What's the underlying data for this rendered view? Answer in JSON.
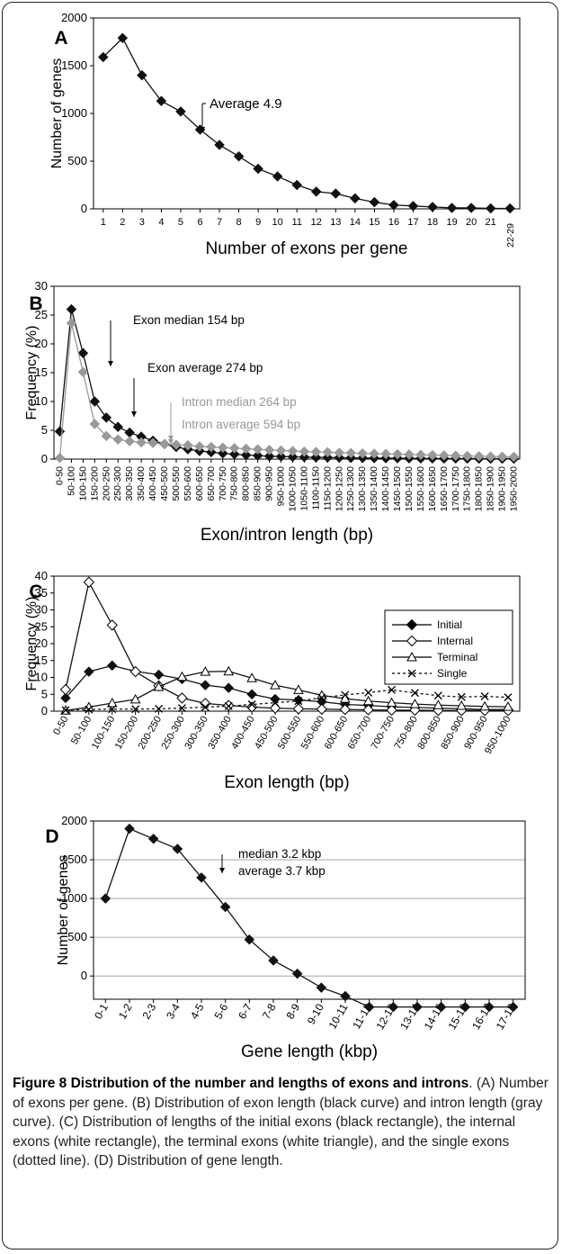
{
  "chart_data": [
    {
      "panel": "A",
      "type": "line",
      "xlabel": "Number of exons per gene",
      "ylabel": "Number of genes",
      "ylim": [
        0,
        2000
      ],
      "yticks": [
        "0",
        "500",
        "1000",
        "1500",
        "2000"
      ],
      "categories": [
        "1",
        "2",
        "3",
        "4",
        "5",
        "6",
        "7",
        "8",
        "9",
        "10",
        "11",
        "12",
        "13",
        "14",
        "15",
        "16",
        "17",
        "18",
        "19",
        "20",
        "21",
        "22-29"
      ],
      "series": [
        {
          "values": [
            1590,
            1790,
            1400,
            1130,
            1020,
            830,
            670,
            550,
            420,
            340,
            250,
            180,
            160,
            110,
            70,
            40,
            30,
            20,
            10,
            10,
            5,
            5
          ]
        }
      ],
      "annotations": [
        "Average 4.9"
      ],
      "grid": false,
      "series_color": "#111111"
    },
    {
      "panel": "B",
      "type": "line",
      "xlabel": "Exon/intron length (bp)",
      "ylabel": "Frequency (%)",
      "ylim": [
        0,
        30
      ],
      "yticks": [
        "0",
        "5",
        "10",
        "15",
        "20",
        "25",
        "30"
      ],
      "categories": [
        "0-50",
        "50-100",
        "100-150",
        "150-200",
        "200-250",
        "250-300",
        "300-350",
        "350-400",
        "400-450",
        "450-500",
        "500-550",
        "550-600",
        "600-650",
        "650-700",
        "700-750",
        "750-800",
        "800-850",
        "850-900",
        "900-950",
        "950-1000",
        "1000-1050",
        "1050-1100",
        "1100-1150",
        "1150-1200",
        "1200-1250",
        "1250-1300",
        "1300-1350",
        "1350-1400",
        "1400-1450",
        "1450-1500",
        "1500-1550",
        "1550-1600",
        "1600-1650",
        "1650-1700",
        "1700-1750",
        "1750-1800",
        "1800-1850",
        "1850-1900",
        "1900-1950",
        "1950-2000"
      ],
      "series": [
        {
          "color": "#111111",
          "values": [
            4.8,
            26,
            18.4,
            10,
            7.2,
            5.6,
            4.6,
            3.9,
            3.2,
            2.6,
            2.1,
            1.7,
            1.4,
            1.2,
            1.0,
            0.85,
            0.7,
            0.6,
            0.5,
            0.45,
            0.4,
            0.35,
            0.3,
            0.28,
            0.25,
            0.22,
            0.2,
            0.18,
            0.16,
            0.15,
            0.13,
            0.12,
            0.11,
            0.1,
            0.1,
            0.09,
            0.08,
            0.08,
            0.07,
            0.07
          ]
        },
        {
          "color": "#999999",
          "values": [
            0.2,
            23.6,
            15.1,
            6.1,
            4.0,
            3.4,
            3.1,
            2.9,
            2.8,
            2.6,
            2.5,
            2.4,
            2.2,
            2.1,
            2.0,
            1.9,
            1.8,
            1.7,
            1.6,
            1.5,
            1.4,
            1.3,
            1.25,
            1.2,
            1.1,
            1.05,
            1.0,
            0.95,
            0.9,
            0.85,
            0.8,
            0.75,
            0.7,
            0.65,
            0.6,
            0.55,
            0.5,
            0.45,
            0.42,
            0.4
          ]
        }
      ],
      "annotations": [
        "Exon median 154 bp",
        "Exon average 274 bp",
        "Intron median 264 bp",
        "Intron average 594 bp"
      ],
      "grid": false
    },
    {
      "panel": "C",
      "type": "line",
      "xlabel": "Exon length (bp)",
      "ylabel": "Frequency (%)",
      "ylim": [
        0,
        40
      ],
      "yticks": [
        "0",
        "5",
        "10",
        "15",
        "20",
        "25",
        "30",
        "35",
        "40"
      ],
      "categories": [
        "0-50",
        "50-100",
        "100-150",
        "150-200",
        "200-250",
        "250-300",
        "300-350",
        "350-400",
        "400-450",
        "450-500",
        "500-550",
        "550-600",
        "600-650",
        "650-700",
        "700-750",
        "750-800",
        "800-850",
        "850-900",
        "900-950",
        "950-1000"
      ],
      "series": [
        {
          "name": "Initial",
          "marker": "diamond-filled",
          "values": [
            3.9,
            11.7,
            13.5,
            11.8,
            10.8,
            9.5,
            7.7,
            6.9,
            5.0,
            3.6,
            3.3,
            2.8,
            2.0,
            1.7,
            1.3,
            1.1,
            0.9,
            0.7,
            0.5,
            0.5
          ]
        },
        {
          "name": "Internal",
          "marker": "diamond-open",
          "values": [
            6.4,
            38.2,
            25.5,
            11.7,
            7.5,
            3.9,
            2.3,
            1.7,
            1.2,
            0.9,
            0.7,
            0.6,
            0.5,
            0.4,
            0.3,
            0.3,
            0.2,
            0.2,
            0.2,
            0.2
          ]
        },
        {
          "name": "Terminal",
          "marker": "triangle-open",
          "values": [
            0.2,
            1.2,
            2.4,
            3.5,
            7.2,
            10.2,
            11.7,
            11.8,
            9.8,
            7.7,
            6.3,
            4.7,
            3.7,
            3.0,
            2.5,
            2.1,
            1.8,
            1.6,
            1.4,
            1.3
          ]
        },
        {
          "name": "Single",
          "marker": "x",
          "values": [
            0.3,
            0.5,
            0.6,
            0.6,
            0.7,
            0.9,
            1.2,
            1.5,
            2.0,
            2.5,
            3.0,
            4.0,
            4.8,
            5.5,
            6.3,
            5.4,
            4.6,
            4.2,
            4.4,
            4.1
          ]
        }
      ],
      "legend": "top-right",
      "grid": false
    },
    {
      "panel": "D",
      "type": "line",
      "xlabel": "Gene length (kbp)",
      "ylabel": "Number of genes",
      "ylim": [
        -300,
        2000
      ],
      "yticks": [
        "0",
        "500",
        "1000",
        "1500",
        "2000"
      ],
      "categories": [
        "0-1",
        "1-2",
        "2-3",
        "3-4",
        "4-5",
        "5-6",
        "6-7",
        "7-8",
        "8-9",
        "9-10",
        "10-11",
        "11-12",
        "12-13",
        "13-14",
        "14-15",
        "15-16",
        "16-17",
        "17-18"
      ],
      "series": [
        {
          "values": [
            1000,
            1900,
            1770,
            1640,
            1270,
            890,
            470,
            200,
            30,
            -150,
            -260,
            -400,
            -400,
            -400,
            -400,
            -400,
            -400,
            -400
          ]
        }
      ],
      "annotations": [
        "median 3.2 kbp",
        "average 3.7 kbp"
      ],
      "grid": true
    }
  ],
  "caption": {
    "title": "Figure 8 Distribution of the number and lengths of exons and introns",
    "text": ". (A) Number of exons per gene. (B) Distribution of exon length (black curve) and intron length (gray curve). (C) Distribution of lengths of the initial exons (black rectangle), the internal exons (white rectangle), the terminal exons (white triangle), and the single exons (dotted line). (D) Distribution of gene length."
  }
}
